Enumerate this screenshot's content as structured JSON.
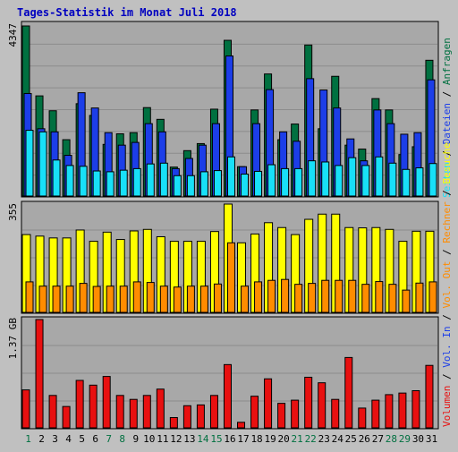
{
  "title": "Tages-Statistik im Monat Juli 2018",
  "colors": {
    "background": "#c0c0c0",
    "panel_bg": "#a8a8a8",
    "title": "#0000c0",
    "grid": "#8c8c8c",
    "hits": "#007040",
    "files": "#1c3ee8",
    "pages": "#18e0f8",
    "visits": "#ffff00",
    "sites": "#ff8c00",
    "kbytes": "#e81010",
    "day_weekday": "#000000",
    "day_weekend": "#007040"
  },
  "labels": {
    "top_max": "4347",
    "mid_max": "355",
    "bot_max": "1.37 GB",
    "right_axis": {
      "anfragen": "Anfragen",
      "dateien": "Dateien",
      "seiten": "Seiten",
      "besuche": "Besuche",
      "rechner": "Rechner",
      "out": "Vol. Out",
      "in": "Vol. In",
      "volumen": "Volumen",
      "sep": " / "
    }
  },
  "chart_data": [
    {
      "type": "bar",
      "name": "hits-files-pages",
      "categories": [
        "1",
        "2",
        "3",
        "4",
        "5",
        "6",
        "7",
        "8",
        "9",
        "10",
        "11",
        "12",
        "13",
        "14",
        "15",
        "16",
        "17",
        "18",
        "19",
        "20",
        "21",
        "22",
        "23",
        "24",
        "25",
        "26",
        "27",
        "28",
        "29",
        "30",
        "31"
      ],
      "weekend_days": [
        1,
        7,
        8,
        14,
        15,
        21,
        22,
        28,
        29
      ],
      "ylim": [
        0,
        4347
      ],
      "ylabel_max": "4347",
      "series": [
        {
          "name": "Anfragen",
          "values": [
            4347,
            2560,
            2180,
            1440,
            2360,
            2060,
            1320,
            1590,
            1620,
            2260,
            1960,
            740,
            1160,
            1340,
            2220,
            3980,
            750,
            2200,
            3120,
            1440,
            1840,
            3860,
            1720,
            3060,
            1300,
            1200,
            2490,
            2200,
            1060,
            1260,
            3470
          ]
        },
        {
          "name": "Dateien",
          "values": [
            2620,
            1720,
            1640,
            1040,
            2640,
            2250,
            1620,
            1300,
            1370,
            1850,
            1640,
            700,
            960,
            1300,
            1850,
            3580,
            750,
            1850,
            2720,
            1640,
            1400,
            3000,
            2710,
            2250,
            1460,
            900,
            2200,
            1850,
            1580,
            1620,
            2970
          ]
        },
        {
          "name": "Seiten",
          "values": [
            1680,
            1640,
            920,
            780,
            760,
            640,
            620,
            660,
            700,
            820,
            840,
            520,
            520,
            620,
            650,
            1000,
            560,
            630,
            800,
            700,
            700,
            900,
            870,
            780,
            980,
            780,
            1000,
            840,
            680,
            720,
            830
          ]
        }
      ]
    },
    {
      "type": "bar",
      "name": "visits-sites",
      "categories": [
        "1",
        "2",
        "3",
        "4",
        "5",
        "6",
        "7",
        "8",
        "9",
        "10",
        "11",
        "12",
        "13",
        "14",
        "15",
        "16",
        "17",
        "18",
        "19",
        "20",
        "21",
        "22",
        "23",
        "24",
        "25",
        "26",
        "27",
        "28",
        "29",
        "30",
        "31"
      ],
      "ylim": [
        0,
        355
      ],
      "ylabel_max": "355",
      "series": [
        {
          "name": "Besuche",
          "values": [
            255,
            250,
            244,
            244,
            270,
            233,
            263,
            239,
            267,
            272,
            248,
            233,
            233,
            233,
            265,
            355,
            228,
            257,
            294,
            278,
            255,
            305,
            322,
            322,
            278,
            277,
            278,
            272,
            233,
            266,
            266
          ]
        },
        {
          "name": "Rechner",
          "values": [
            100,
            86,
            86,
            86,
            95,
            85,
            86,
            86,
            100,
            98,
            86,
            83,
            86,
            86,
            93,
            228,
            86,
            100,
            105,
            108,
            92,
            95,
            105,
            105,
            105,
            92,
            101,
            92,
            73,
            96,
            100
          ]
        }
      ]
    },
    {
      "type": "bar",
      "name": "volume",
      "categories": [
        "1",
        "2",
        "3",
        "4",
        "5",
        "6",
        "7",
        "8",
        "9",
        "10",
        "11",
        "12",
        "13",
        "14",
        "15",
        "16",
        "17",
        "18",
        "19",
        "20",
        "21",
        "22",
        "23",
        "24",
        "25",
        "26",
        "27",
        "28",
        "29",
        "30",
        "31"
      ],
      "ylim": [
        0,
        1.37
      ],
      "ylabel_max": "1.37 GB",
      "series": [
        {
          "name": "Volumen",
          "values": [
            0.48,
            1.37,
            0.41,
            0.27,
            0.6,
            0.54,
            0.65,
            0.41,
            0.36,
            0.41,
            0.49,
            0.13,
            0.28,
            0.29,
            0.41,
            0.8,
            0.07,
            0.4,
            0.62,
            0.31,
            0.35,
            0.64,
            0.57,
            0.36,
            0.89,
            0.25,
            0.35,
            0.42,
            0.44,
            0.47,
            0.79
          ]
        }
      ]
    }
  ]
}
